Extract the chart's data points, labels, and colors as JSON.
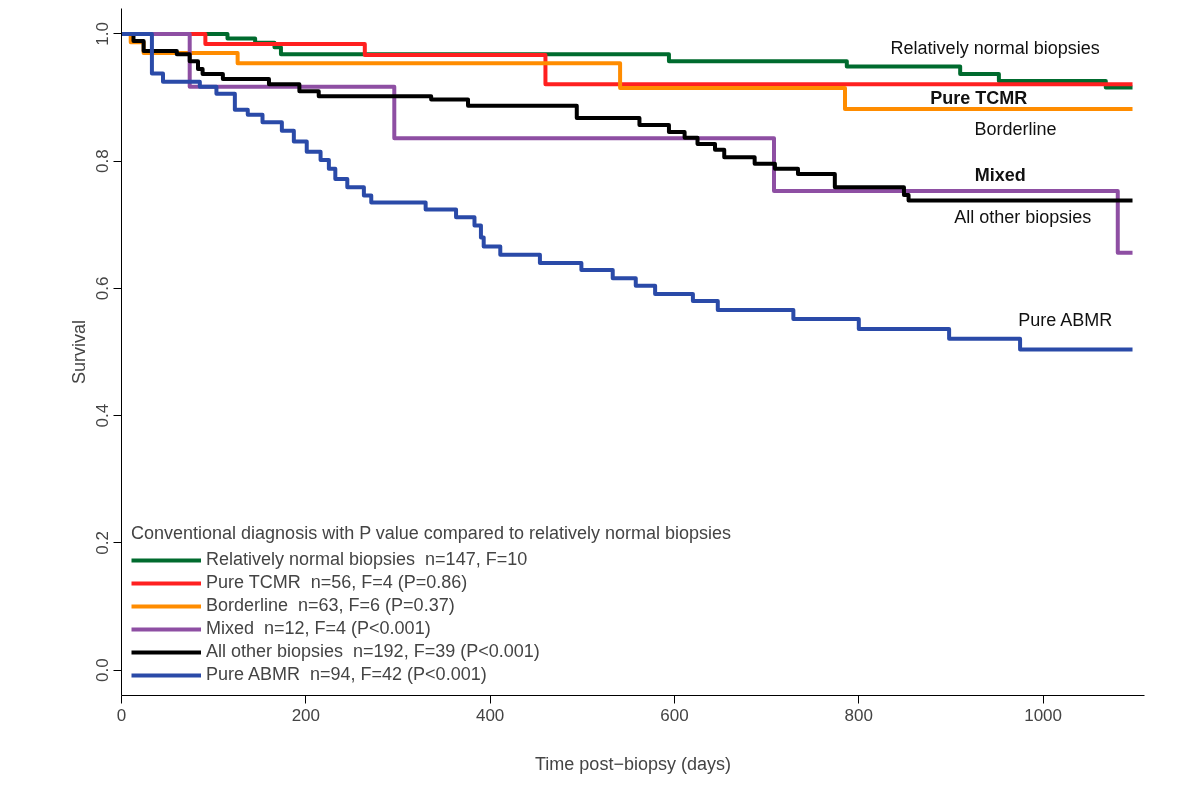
{
  "chart_data": {
    "type": "step",
    "xlabel": "Time post−biopsy (days)",
    "ylabel": "Survival",
    "legend_title": "Conventional diagnosis with P value compared to relatively normal biopsies",
    "legend": "bottom left",
    "grid": false,
    "line_style": "solid",
    "xlim": [
      0,
      1110
    ],
    "ylim": [
      -0.04,
      1.04
    ],
    "xticks": [
      0,
      200,
      400,
      600,
      800,
      1000
    ],
    "yticks": [
      {
        "value": 0,
        "label": "0.0"
      },
      {
        "value": 0.2,
        "label": "0.2"
      },
      {
        "value": 0.4,
        "label": "0.4"
      },
      {
        "value": 0.6,
        "label": "0.6"
      },
      {
        "value": 0.8,
        "label": "0.8"
      },
      {
        "value": 1,
        "label": "1.0"
      }
    ],
    "series": [
      {
        "name": "Relatively normal biopsies  n=147, F=10",
        "color": "#006b2e",
        "x": [
          0,
          115,
          145,
          166,
          173,
          594,
          787,
          910,
          952,
          1068,
          1097
        ],
        "values": [
          1.0,
          0.993,
          0.986,
          0.979,
          0.968,
          0.957,
          0.949,
          0.937,
          0.926,
          0.916,
          0.916
        ]
      },
      {
        "name": "Pure TCMR  n=56, F=4 (P=0.86)",
        "color": "#ff2020",
        "x": [
          0,
          91,
          264,
          460,
          1097
        ],
        "values": [
          1.0,
          0.984,
          0.967,
          0.921,
          0.921
        ]
      },
      {
        "name": "Borderline  n=63, F=6 (P=0.37)",
        "color": "#ff8c00",
        "x": [
          0,
          10,
          24,
          126,
          541,
          785,
          1097
        ],
        "values": [
          1.0,
          0.987,
          0.97,
          0.954,
          0.915,
          0.882,
          0.882
        ]
      },
      {
        "name": "Mixed  n=12, F=4 (P<0.001)",
        "color": "#8e4fa3",
        "x": [
          0,
          74,
          296,
          708,
          1081,
          1097
        ],
        "values": [
          1.0,
          0.917,
          0.836,
          0.753,
          0.656,
          0.656
        ]
      },
      {
        "name": "All other biopsies  n=192, F=39 (P<0.001)",
        "color": "#000000",
        "x": [
          0,
          13,
          24,
          60,
          74,
          83,
          88,
          110,
          160,
          193,
          214,
          336,
          376,
          494,
          562,
          594,
          611,
          625,
          644,
          654,
          687,
          709,
          734,
          774,
          849,
          854,
          1097
        ],
        "values": [
          1.0,
          0.989,
          0.973,
          0.968,
          0.957,
          0.945,
          0.937,
          0.929,
          0.921,
          0.91,
          0.902,
          0.897,
          0.887,
          0.868,
          0.857,
          0.846,
          0.837,
          0.827,
          0.818,
          0.806,
          0.796,
          0.788,
          0.78,
          0.759,
          0.747,
          0.738,
          0.738
        ]
      },
      {
        "name": "Pure ABMR  n=94, F=42 (P<0.001)",
        "color": "#2a4aa8",
        "x": [
          0,
          33,
          45,
          85,
          103,
          123,
          137,
          153,
          174,
          187,
          201,
          216,
          225,
          232,
          245,
          263,
          271,
          330,
          363,
          383,
          390,
          393,
          411,
          454,
          499,
          533,
          558,
          579,
          620,
          647,
          729,
          800,
          898,
          975,
          1097
        ],
        "values": [
          1.0,
          0.938,
          0.925,
          0.917,
          0.906,
          0.881,
          0.873,
          0.861,
          0.848,
          0.831,
          0.815,
          0.802,
          0.788,
          0.772,
          0.759,
          0.746,
          0.735,
          0.724,
          0.712,
          0.699,
          0.68,
          0.666,
          0.653,
          0.64,
          0.629,
          0.616,
          0.604,
          0.591,
          0.58,
          0.566,
          0.552,
          0.536,
          0.521,
          0.504,
          0.504
        ]
      }
    ],
    "annotations": [
      "Relatively normal biopsies",
      "Pure TCMR",
      "Borderline",
      "Mixed",
      "All other biopsies",
      "Pure ABMR"
    ]
  }
}
